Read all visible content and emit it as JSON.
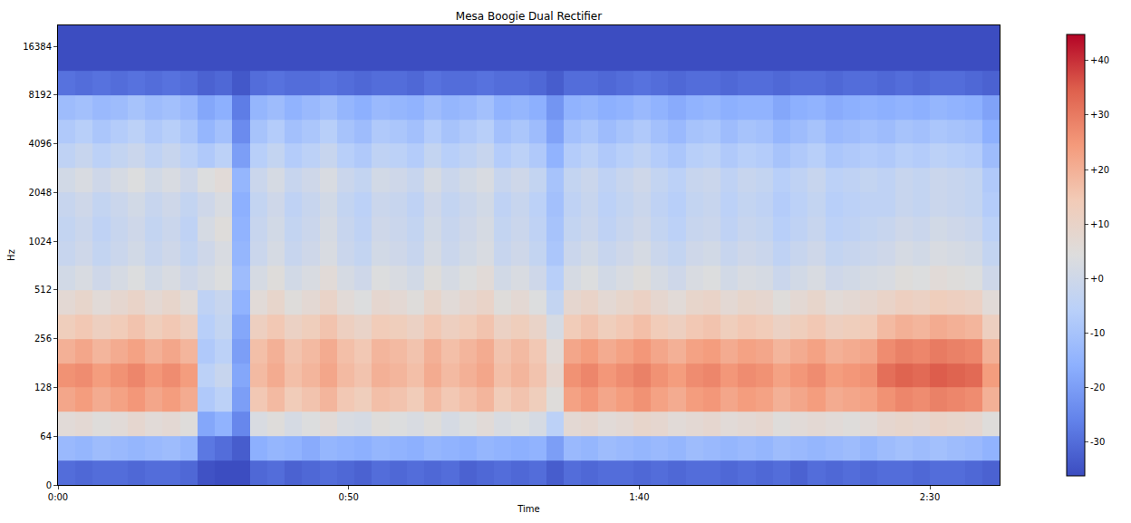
{
  "chart_data": {
    "type": "heatmap",
    "title": "Mesa Boogie Dual Rectifier",
    "x_label": "Time",
    "y_label": "Hz",
    "log": "y",
    "grid": false,
    "xlim": [
      0,
      162
    ],
    "xticks": [
      {
        "value": 0,
        "label": "0:00"
      },
      {
        "value": 50,
        "label": "0:50"
      },
      {
        "value": 100,
        "label": "1:40"
      },
      {
        "value": 150,
        "label": "2:30"
      }
    ],
    "ylim": [
      0,
      22050
    ],
    "yticks": [
      0,
      64,
      128,
      256,
      512,
      1024,
      2048,
      4096,
      8192,
      16384
    ],
    "zlim": [
      -36.2,
      44.8
    ],
    "zticks": [
      {
        "value": 40,
        "label": "+40"
      },
      {
        "value": 30,
        "label": "+30"
      },
      {
        "value": 20,
        "label": "+20"
      },
      {
        "value": 10,
        "label": "+10"
      },
      {
        "value": 0,
        "label": "+0"
      },
      -10,
      -20,
      -30
    ],
    "x": [
      1.5,
      4.5,
      7.5,
      10.5,
      13.5,
      16.5,
      19.5,
      22.5,
      25.5,
      28.5,
      31.5,
      34.5,
      37.5,
      40.5,
      43.5,
      46.5,
      49.5,
      52.5,
      55.5,
      58.5,
      61.5,
      64.5,
      67.5,
      70.5,
      73.5,
      76.5,
      79.5,
      82.5,
      85.5,
      88.5,
      91.5,
      94.5,
      97.5,
      100.5,
      103.5,
      106.5,
      109.5,
      112.5,
      115.5,
      118.5,
      121.5,
      124.5,
      127.5,
      130.5,
      133.5,
      136.5,
      139.5,
      142.5,
      145.5,
      148.5,
      151.5,
      154.5,
      157.5,
      160.5
    ],
    "y": [
      16,
      48,
      76,
      108,
      152,
      215,
      304,
      431,
      609,
      861,
      1218,
      1722,
      2436,
      3444,
      4871,
      6889,
      9742,
      13777,
      19484
    ],
    "z": [
      [
        -30,
        -31,
        -30,
        -30,
        -31,
        -30,
        -30,
        -31,
        -35,
        -36,
        -36,
        -31,
        -30,
        -32,
        -31,
        -30,
        -31,
        -32,
        -30,
        -31,
        -30,
        -31,
        -30,
        -32,
        -31,
        -30,
        -31,
        -30,
        -33,
        -30,
        -31,
        -30,
        -30,
        -31,
        -30,
        -31,
        -30,
        -30,
        -31,
        -30,
        -31,
        -30,
        -32,
        -30,
        -31,
        -30,
        -31,
        -30,
        -30,
        -31,
        -30,
        -30,
        -31,
        -32
      ],
      [
        -13,
        -14,
        -12,
        -13,
        -14,
        -13,
        -12,
        -14,
        -28,
        -30,
        -33,
        -16,
        -14,
        -15,
        -17,
        -14,
        -15,
        -16,
        -14,
        -15,
        -16,
        -14,
        -15,
        -16,
        -14,
        -15,
        -16,
        -15,
        -20,
        -13,
        -14,
        -12,
        -13,
        -14,
        -13,
        -14,
        -12,
        -13,
        -14,
        -13,
        -14,
        -12,
        -13,
        -14,
        -13,
        -12,
        -14,
        -12,
        -11,
        -12,
        -11,
        -12,
        -13,
        -15
      ],
      [
        6,
        7,
        5,
        6,
        8,
        6,
        7,
        5,
        -18,
        -15,
        -25,
        3,
        5,
        2,
        4,
        6,
        3,
        2,
        5,
        4,
        3,
        5,
        2,
        4,
        6,
        3,
        4,
        2,
        -5,
        7,
        8,
        6,
        7,
        9,
        8,
        6,
        7,
        8,
        6,
        7,
        8,
        5,
        6,
        7,
        6,
        5,
        6,
        8,
        9,
        8,
        10,
        9,
        8,
        5
      ],
      [
        22,
        24,
        21,
        23,
        25,
        22,
        24,
        21,
        -8,
        -5,
        -20,
        15,
        18,
        14,
        16,
        19,
        15,
        13,
        17,
        16,
        14,
        18,
        15,
        17,
        19,
        14,
        16,
        13,
        5,
        23,
        25,
        22,
        24,
        26,
        23,
        21,
        24,
        25,
        22,
        24,
        23,
        20,
        22,
        24,
        21,
        22,
        23,
        26,
        28,
        27,
        29,
        28,
        27,
        20
      ],
      [
        26,
        27,
        24,
        26,
        28,
        25,
        27,
        24,
        -5,
        -2,
        -18,
        18,
        21,
        17,
        19,
        22,
        18,
        16,
        20,
        19,
        17,
        21,
        18,
        20,
        22,
        17,
        19,
        16,
        8,
        26,
        28,
        25,
        27,
        29,
        26,
        24,
        27,
        28,
        25,
        27,
        26,
        23,
        25,
        27,
        24,
        25,
        26,
        32,
        34,
        33,
        35,
        34,
        33,
        24
      ],
      [
        20,
        22,
        19,
        21,
        23,
        20,
        22,
        19,
        -8,
        -5,
        -20,
        17,
        20,
        16,
        18,
        21,
        17,
        15,
        19,
        18,
        16,
        20,
        17,
        19,
        21,
        16,
        18,
        15,
        6,
        22,
        24,
        21,
        23,
        25,
        22,
        20,
        23,
        24,
        21,
        23,
        22,
        19,
        21,
        23,
        20,
        21,
        22,
        27,
        29,
        28,
        30,
        29,
        28,
        20
      ],
      [
        13,
        15,
        12,
        14,
        16,
        13,
        15,
        12,
        -6,
        -3,
        -18,
        12,
        15,
        11,
        13,
        16,
        12,
        10,
        14,
        13,
        11,
        15,
        12,
        14,
        16,
        11,
        13,
        10,
        2,
        14,
        16,
        13,
        15,
        17,
        14,
        12,
        15,
        16,
        13,
        15,
        14,
        11,
        13,
        15,
        12,
        13,
        14,
        18,
        20,
        19,
        21,
        20,
        19,
        12
      ],
      [
        7,
        9,
        6,
        8,
        10,
        7,
        9,
        6,
        -4,
        -2,
        -15,
        6,
        9,
        5,
        7,
        10,
        6,
        4,
        8,
        7,
        5,
        9,
        6,
        8,
        10,
        5,
        7,
        4,
        -3,
        8,
        10,
        7,
        9,
        11,
        8,
        6,
        9,
        10,
        7,
        9,
        8,
        5,
        7,
        9,
        6,
        7,
        8,
        10,
        12,
        11,
        13,
        12,
        11,
        6
      ],
      [
        1,
        3,
        0,
        2,
        4,
        1,
        3,
        0,
        2,
        4,
        -12,
        2,
        5,
        1,
        3,
        6,
        2,
        0,
        4,
        3,
        1,
        5,
        2,
        4,
        6,
        1,
        3,
        0,
        -6,
        2,
        4,
        1,
        3,
        5,
        2,
        0,
        3,
        4,
        1,
        3,
        2,
        -1,
        1,
        3,
        0,
        1,
        2,
        3,
        5,
        4,
        6,
        5,
        4,
        0
      ],
      [
        -2,
        0,
        -3,
        -1,
        1,
        -2,
        0,
        -3,
        0,
        3,
        -14,
        -1,
        2,
        -2,
        0,
        3,
        -1,
        -3,
        1,
        0,
        -2,
        2,
        -1,
        1,
        3,
        -2,
        0,
        -3,
        -9,
        -1,
        1,
        -2,
        0,
        2,
        -1,
        -3,
        0,
        1,
        -2,
        0,
        -1,
        -4,
        -2,
        0,
        -3,
        -2,
        -1,
        0,
        2,
        1,
        3,
        2,
        1,
        -3
      ],
      [
        -3,
        -1,
        -4,
        -2,
        0,
        -3,
        -1,
        -4,
        2,
        5,
        -15,
        -2,
        1,
        -3,
        -1,
        2,
        -2,
        -4,
        0,
        -1,
        -3,
        1,
        -2,
        0,
        2,
        -3,
        -1,
        -4,
        -10,
        -3,
        -1,
        -4,
        -2,
        0,
        -3,
        -5,
        -2,
        -1,
        -4,
        -2,
        -3,
        -6,
        -4,
        -2,
        -5,
        -4,
        -3,
        -2,
        0,
        -1,
        1,
        0,
        -1,
        -5
      ],
      [
        -2,
        0,
        -3,
        -1,
        1,
        -2,
        0,
        -3,
        0,
        3,
        -16,
        -3,
        0,
        -4,
        -2,
        1,
        -3,
        -5,
        -1,
        -2,
        -4,
        0,
        -3,
        -1,
        1,
        -4,
        -2,
        -5,
        -11,
        -4,
        -2,
        -5,
        -3,
        -1,
        -4,
        -6,
        -3,
        -2,
        -5,
        -3,
        -4,
        -7,
        -5,
        -3,
        -6,
        -5,
        -4,
        -4,
        -2,
        -3,
        -1,
        -2,
        -3,
        -7
      ],
      [
        1,
        3,
        0,
        2,
        4,
        1,
        3,
        0,
        4,
        6,
        -14,
        -1,
        2,
        -2,
        0,
        3,
        -1,
        -3,
        1,
        0,
        -2,
        2,
        -1,
        1,
        3,
        -2,
        0,
        -3,
        -10,
        -3,
        -1,
        -4,
        -2,
        0,
        -3,
        -5,
        -2,
        -1,
        -4,
        -2,
        -3,
        -6,
        -4,
        -2,
        -5,
        -4,
        -3,
        -4,
        -2,
        -3,
        -1,
        -2,
        -3,
        -8
      ],
      [
        -4,
        -2,
        -5,
        -3,
        -1,
        -4,
        -2,
        -5,
        -8,
        -5,
        -20,
        -6,
        -3,
        -7,
        -5,
        -2,
        -6,
        -8,
        -4,
        -5,
        -7,
        -3,
        -6,
        -4,
        -2,
        -7,
        -5,
        -8,
        -15,
        -7,
        -5,
        -8,
        -6,
        -4,
        -7,
        -9,
        -6,
        -5,
        -8,
        -6,
        -7,
        -10,
        -8,
        -6,
        -9,
        -8,
        -7,
        -8,
        -6,
        -7,
        -5,
        -6,
        -7,
        -12
      ],
      [
        -8,
        -6,
        -9,
        -7,
        -5,
        -8,
        -6,
        -9,
        -14,
        -11,
        -24,
        -10,
        -7,
        -11,
        -9,
        -6,
        -10,
        -12,
        -8,
        -9,
        -11,
        -7,
        -10,
        -8,
        -6,
        -11,
        -9,
        -12,
        -19,
        -11,
        -9,
        -12,
        -10,
        -8,
        -11,
        -13,
        -10,
        -9,
        -12,
        -10,
        -11,
        -14,
        -12,
        -10,
        -13,
        -12,
        -11,
        -12,
        -10,
        -11,
        -9,
        -10,
        -11,
        -16
      ],
      [
        -12,
        -11,
        -13,
        -12,
        -10,
        -12,
        -11,
        -13,
        -18,
        -16,
        -27,
        -14,
        -12,
        -15,
        -13,
        -11,
        -14,
        -16,
        -13,
        -14,
        -15,
        -12,
        -14,
        -13,
        -11,
        -15,
        -14,
        -16,
        -22,
        -15,
        -14,
        -16,
        -15,
        -13,
        -15,
        -17,
        -15,
        -14,
        -16,
        -15,
        -15,
        -18,
        -16,
        -15,
        -17,
        -16,
        -15,
        -16,
        -15,
        -16,
        -14,
        -15,
        -16,
        -19
      ],
      [
        -29,
        -30,
        -29,
        -30,
        -29,
        -30,
        -29,
        -30,
        -32,
        -31,
        -34,
        -30,
        -29,
        -30,
        -30,
        -29,
        -30,
        -31,
        -30,
        -30,
        -31,
        -29,
        -30,
        -30,
        -29,
        -30,
        -30,
        -31,
        -33,
        -30,
        -30,
        -31,
        -30,
        -29,
        -30,
        -31,
        -30,
        -30,
        -31,
        -30,
        -30,
        -31,
        -30,
        -30,
        -31,
        -30,
        -30,
        -31,
        -30,
        -31,
        -30,
        -30,
        -31,
        -32
      ],
      [
        -36,
        -36,
        -36,
        -36,
        -36,
        -36,
        -36,
        -36,
        -36,
        -36,
        -36,
        -36,
        -36,
        -36,
        -36,
        -36,
        -36,
        -36,
        -36,
        -36,
        -36,
        -36,
        -36,
        -36,
        -36,
        -36,
        -36,
        -36,
        -36,
        -36,
        -36,
        -36,
        -36,
        -36,
        -36,
        -36,
        -36,
        -36,
        -36,
        -36,
        -36,
        -36,
        -36,
        -36,
        -36,
        -36,
        -36,
        -36,
        -36,
        -36,
        -36,
        -36,
        -36,
        -36
      ],
      [
        -36,
        -36,
        -36,
        -36,
        -36,
        -36,
        -36,
        -36,
        -36,
        -36,
        -36,
        -36,
        -36,
        -36,
        -36,
        -36,
        -36,
        -36,
        -36,
        -36,
        -36,
        -36,
        -36,
        -36,
        -36,
        -36,
        -36,
        -36,
        -36,
        -36,
        -36,
        -36,
        -36,
        -36,
        -36,
        -36,
        -36,
        -36,
        -36,
        -36,
        -36,
        -36,
        -36,
        -36,
        -36,
        -36,
        -36,
        -36,
        -36,
        -36,
        -36,
        -36,
        -36,
        -36
      ]
    ]
  }
}
